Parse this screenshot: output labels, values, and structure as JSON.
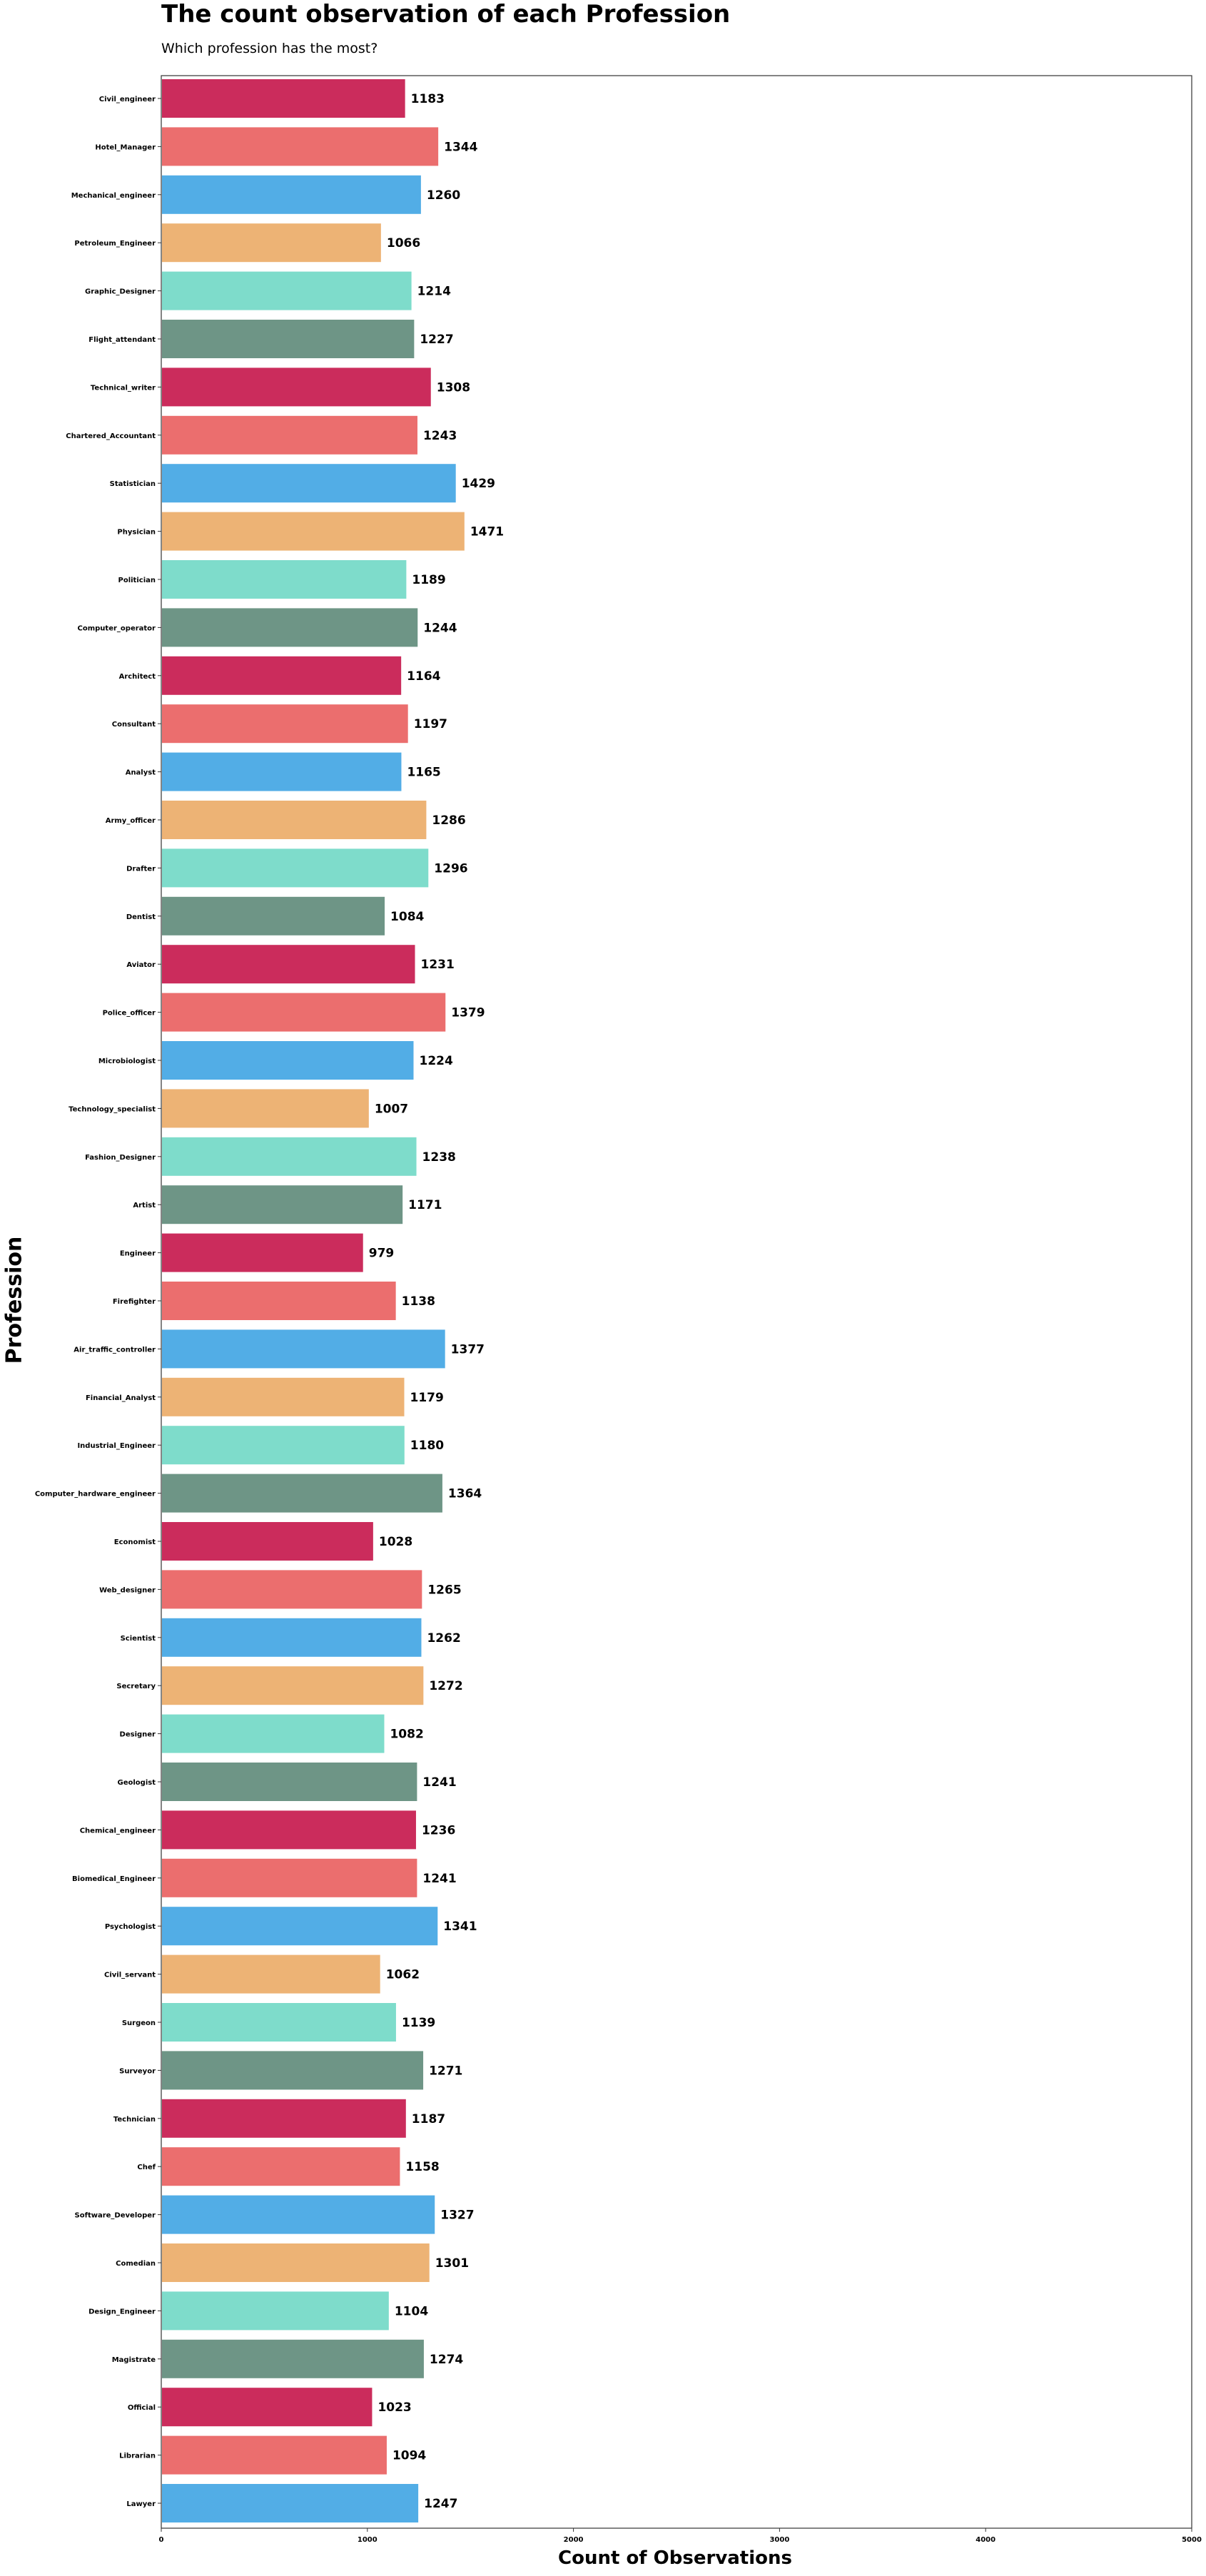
{
  "title": "The count observation of each Profession",
  "subtitle": "Which profession has the most?",
  "chart_data": {
    "type": "bar",
    "orientation": "horizontal",
    "title": "The count observation of each Profession",
    "subtitle": "Which profession has the most?",
    "xlabel": "Count of Observations",
    "ylabel": "Profession",
    "xlim": [
      0,
      5000
    ],
    "xticks": [
      0,
      1000,
      2000,
      3000,
      4000,
      5000
    ],
    "grid": false,
    "palette": [
      "#cb2c5c",
      "#eb6e6e",
      "#52ade6",
      "#edb375",
      "#7edccb",
      "#6e9586"
    ],
    "categories": [
      "Civil_engineer",
      "Hotel_Manager",
      "Mechanical_engineer",
      "Petroleum_Engineer",
      "Graphic_Designer",
      "Flight_attendant",
      "Technical_writer",
      "Chartered_Accountant",
      "Statistician",
      "Physician",
      "Politician",
      "Computer_operator",
      "Architect",
      "Consultant",
      "Analyst",
      "Army_officer",
      "Drafter",
      "Dentist",
      "Aviator",
      "Police_officer",
      "Microbiologist",
      "Technology_specialist",
      "Fashion_Designer",
      "Artist",
      "Engineer",
      "Firefighter",
      "Air_traffic_controller",
      "Financial_Analyst",
      "Industrial_Engineer",
      "Computer_hardware_engineer",
      "Economist",
      "Web_designer",
      "Scientist",
      "Secretary",
      "Designer",
      "Geologist",
      "Chemical_engineer",
      "Biomedical_Engineer",
      "Psychologist",
      "Civil_servant",
      "Surgeon",
      "Surveyor",
      "Technician",
      "Chef",
      "Software_Developer",
      "Comedian",
      "Design_Engineer",
      "Magistrate",
      "Official",
      "Librarian",
      "Lawyer"
    ],
    "values": [
      1183,
      1344,
      1260,
      1066,
      1214,
      1227,
      1308,
      1243,
      1429,
      1471,
      1189,
      1244,
      1164,
      1197,
      1165,
      1286,
      1296,
      1084,
      1231,
      1379,
      1224,
      1007,
      1238,
      1171,
      979,
      1138,
      1377,
      1179,
      1180,
      1364,
      1028,
      1265,
      1262,
      1272,
      1082,
      1241,
      1236,
      1241,
      1341,
      1062,
      1139,
      1271,
      1187,
      1158,
      1327,
      1301,
      1104,
      1274,
      1023,
      1094,
      1247
    ]
  }
}
